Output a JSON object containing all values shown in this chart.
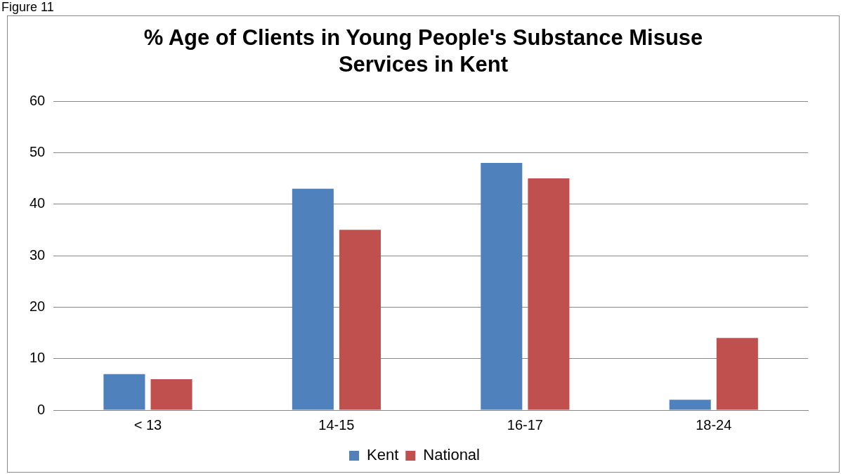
{
  "chart_data": {
    "type": "bar",
    "title": "% Age of Clients in Young People's Substance Misuse Services in Kent",
    "annotations": [
      "Figure 11"
    ],
    "categories": [
      "< 13",
      "14-15",
      "16-17",
      "18-24"
    ],
    "series": [
      {
        "name": "Kent",
        "color": "#4f81bd",
        "values": [
          7,
          43,
          48,
          2
        ]
      },
      {
        "name": "National",
        "color": "#c0504d",
        "values": [
          6,
          35,
          45,
          14
        ]
      }
    ],
    "ylim": [
      0,
      60
    ],
    "yticks": [
      0,
      10,
      20,
      30,
      40,
      50,
      60
    ],
    "grid": "y",
    "legend": "bottom"
  }
}
